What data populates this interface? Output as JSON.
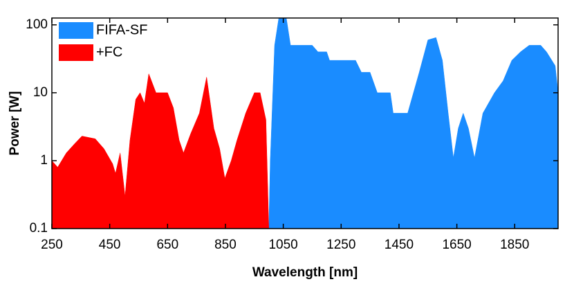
{
  "chart_data": {
    "type": "area",
    "xlabel": "Wavelength [nm]",
    "ylabel": "Power [W]",
    "xlim": [
      250,
      2000
    ],
    "xticks": [
      250,
      450,
      650,
      850,
      1050,
      1250,
      1450,
      1650,
      1850
    ],
    "ylim": [
      0.1,
      126
    ],
    "yticks": [
      0.1,
      1,
      10,
      100
    ],
    "ylog": true,
    "legend": "upper left",
    "series": [
      {
        "name": "FIFA-SF",
        "color": "#1a8cff",
        "x": [
          1000,
          1005,
          1020,
          1035,
          1060,
          1075,
          1150,
          1170,
          1200,
          1210,
          1300,
          1320,
          1350,
          1375,
          1420,
          1430,
          1480,
          1520,
          1550,
          1578,
          1600,
          1620,
          1638,
          1655,
          1672,
          1690,
          1711,
          1740,
          1780,
          1810,
          1840,
          1870,
          1900,
          1940,
          1960,
          1990,
          2000
        ],
        "values": [
          0.1,
          1,
          50,
          130,
          130,
          50,
          50,
          40,
          40,
          30,
          30,
          20,
          20,
          10,
          10,
          5,
          5,
          20,
          60,
          65,
          30,
          5,
          1.1,
          3,
          5,
          3,
          1.1,
          5,
          10,
          15,
          30,
          40,
          50,
          50,
          40,
          25,
          10
        ]
      },
      {
        "name": "+FC",
        "color": "#ff0000",
        "x": [
          250,
          270,
          300,
          330,
          354,
          400,
          430,
          460,
          470,
          486,
          495,
          503,
          520,
          540,
          555,
          570,
          585,
          610,
          650,
          670,
          690,
          705,
          730,
          760,
          785,
          810,
          830,
          848,
          870,
          890,
          920,
          950,
          970,
          990,
          1000
        ],
        "values": [
          1.0,
          0.8,
          1.3,
          1.8,
          2.3,
          2.1,
          1.5,
          0.9,
          0.65,
          1.3,
          0.6,
          0.3,
          2,
          8,
          10,
          7,
          19,
          10,
          10,
          6,
          2,
          1.3,
          2.5,
          5,
          17,
          3,
          1.5,
          0.55,
          1,
          2,
          5,
          10,
          10,
          4,
          0.1
        ]
      }
    ]
  }
}
